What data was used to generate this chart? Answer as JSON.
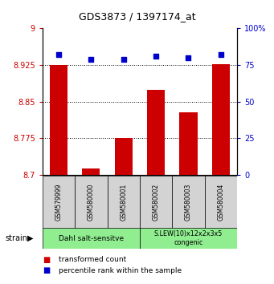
{
  "title": "GDS3873 / 1397174_at",
  "samples": [
    "GSM579999",
    "GSM580000",
    "GSM580001",
    "GSM580002",
    "GSM580003",
    "GSM580004"
  ],
  "bar_values": [
    8.925,
    8.713,
    8.775,
    8.874,
    8.828,
    8.926
  ],
  "percentile_values": [
    82,
    79,
    79,
    81,
    80,
    82
  ],
  "ylim_left": [
    8.7,
    9.0
  ],
  "ylim_right": [
    0,
    100
  ],
  "yticks_left": [
    8.7,
    8.775,
    8.85,
    8.925,
    9.0
  ],
  "ytick_labels_left": [
    "8.7",
    "8.775",
    "8.85",
    "8.925",
    "9"
  ],
  "yticks_right": [
    0,
    25,
    50,
    75,
    100
  ],
  "ytick_labels_right": [
    "0",
    "25",
    "50",
    "75",
    "100%"
  ],
  "hlines": [
    8.775,
    8.85,
    8.925
  ],
  "bar_color": "#cc0000",
  "dot_color": "#0000cc",
  "bar_width": 0.55,
  "group1_label": "Dahl salt-sensitve",
  "group2_label": "S.LEW(10)x12x2x3x5\ncongenic",
  "group1_indices": [
    0,
    1,
    2
  ],
  "group2_indices": [
    3,
    4,
    5
  ],
  "group_color": "#90ee90",
  "legend_tc": "transformed count",
  "legend_pr": "percentile rank within the sample",
  "strain_label": "strain",
  "tick_color_left": "#cc0000",
  "tick_color_right": "#0000cc",
  "gsm_box_color": "#d3d3d3",
  "bg_color": "#ffffff"
}
